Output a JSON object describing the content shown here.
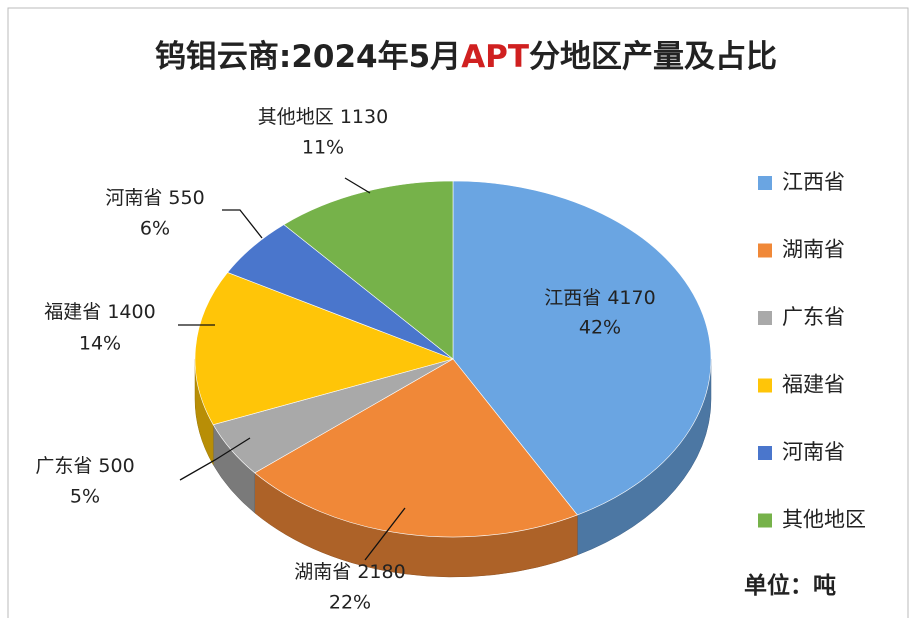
{
  "chart_data": {
    "type": "pie3d",
    "title": [
      "钨钼云商:2024年5月",
      "APT",
      "分地区产量及占比"
    ],
    "categories": [
      "江西省",
      "湖南省",
      "广东省",
      "福建省",
      "河南省",
      "其他地区"
    ],
    "values": [
      4170,
      2180,
      500,
      1400,
      550,
      1130
    ],
    "percentages": [
      42,
      22,
      5,
      14,
      6,
      11
    ],
    "percentage_labels": [
      "42%",
      "22%",
      "5%",
      "14%",
      "6%",
      "11%"
    ],
    "colors": [
      "#6aa5e2",
      "#f08838",
      "#a9a9a9",
      "#ffc508",
      "#4a76cc",
      "#76b24a"
    ],
    "legend": "right",
    "unit_note": "单位：吨"
  }
}
